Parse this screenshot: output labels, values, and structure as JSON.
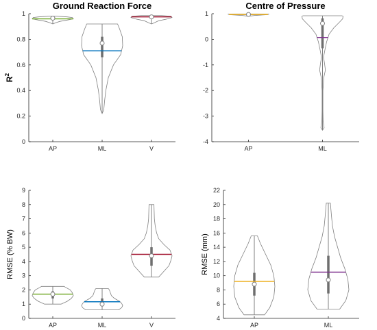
{
  "chart_data": [
    {
      "type": "violin",
      "title": "Ground Reaction Force",
      "ylabel": "R",
      "ylabel_superscript": "2",
      "categories": [
        "AP",
        "ML",
        "V"
      ],
      "ylim": [
        0,
        1
      ],
      "yticks": [
        0,
        0.2,
        0.4,
        0.6,
        0.8,
        1
      ],
      "ytick_labels": [
        "0",
        "0.2",
        "0.4",
        "0.6",
        "0.8",
        "1"
      ],
      "grid": false,
      "series": [
        {
          "category": "AP",
          "color": "#77AC30",
          "min": 0.92,
          "q1": 0.955,
          "median": 0.965,
          "q3": 0.975,
          "max": 0.98,
          "mean": 0.96,
          "profile": [
            [
              0.92,
              0.0
            ],
            [
              0.93,
              0.15
            ],
            [
              0.94,
              0.35
            ],
            [
              0.95,
              0.7
            ],
            [
              0.96,
              1.0
            ],
            [
              0.97,
              0.95
            ],
            [
              0.975,
              0.7
            ],
            [
              0.98,
              0.2
            ]
          ]
        },
        {
          "category": "ML",
          "color": "#0072BD",
          "min": 0.22,
          "q1": 0.66,
          "median": 0.77,
          "q3": 0.82,
          "max": 0.92,
          "mean": 0.71,
          "profile": [
            [
              0.22,
              0.0
            ],
            [
              0.25,
              0.08
            ],
            [
              0.32,
              0.12
            ],
            [
              0.4,
              0.18
            ],
            [
              0.5,
              0.3
            ],
            [
              0.6,
              0.55
            ],
            [
              0.68,
              0.9
            ],
            [
              0.75,
              1.0
            ],
            [
              0.82,
              0.98
            ],
            [
              0.88,
              0.85
            ],
            [
              0.92,
              0.75
            ]
          ]
        },
        {
          "category": "V",
          "color": "#A2142F",
          "min": 0.92,
          "q1": 0.968,
          "median": 0.975,
          "q3": 0.98,
          "max": 0.985,
          "mean": 0.975,
          "profile": [
            [
              0.92,
              0.0
            ],
            [
              0.93,
              0.15
            ],
            [
              0.945,
              0.35
            ],
            [
              0.96,
              0.8
            ],
            [
              0.97,
              1.0
            ],
            [
              0.98,
              0.95
            ],
            [
              0.985,
              0.5
            ]
          ]
        }
      ]
    },
    {
      "type": "violin",
      "title": "Centre of Pressure",
      "ylabel": "",
      "categories": [
        "AP",
        "ML"
      ],
      "ylim": [
        -4,
        1
      ],
      "yticks": [
        -4,
        -3,
        -2,
        -1,
        0,
        1
      ],
      "ytick_labels": [
        "-4",
        "-3",
        "-2",
        "-1",
        "0",
        "1"
      ],
      "grid": false,
      "series": [
        {
          "category": "AP",
          "color": "#EDB120",
          "min": 0.9,
          "q1": 0.95,
          "median": 0.97,
          "q3": 0.985,
          "max": 0.99,
          "mean": 0.97,
          "profile": [
            [
              0.9,
              0.0
            ],
            [
              0.93,
              0.3
            ],
            [
              0.96,
              0.9
            ],
            [
              0.98,
              1.0
            ],
            [
              0.99,
              0.4
            ]
          ]
        },
        {
          "category": "ML",
          "color": "#7E2F8E",
          "min": -3.55,
          "q1": -0.35,
          "median": 0.62,
          "q3": 0.82,
          "max": 0.92,
          "mean": 0.07,
          "profile": [
            [
              -3.55,
              0.0
            ],
            [
              -3.45,
              0.08
            ],
            [
              -3.2,
              0.03
            ],
            [
              -2.8,
              0.02
            ],
            [
              -2.0,
              0.02
            ],
            [
              -1.5,
              0.06
            ],
            [
              -1.2,
              0.14
            ],
            [
              -0.95,
              0.1
            ],
            [
              -0.7,
              0.05
            ],
            [
              -0.4,
              0.12
            ],
            [
              -0.1,
              0.2
            ],
            [
              0.2,
              0.32
            ],
            [
              0.45,
              0.55
            ],
            [
              0.65,
              0.8
            ],
            [
              0.8,
              0.98
            ],
            [
              0.9,
              1.0
            ],
            [
              0.92,
              0.95
            ]
          ]
        }
      ]
    },
    {
      "type": "violin",
      "title": "",
      "ylabel": "RMSE (% BW)",
      "categories": [
        "AP",
        "ML",
        "V"
      ],
      "ylim": [
        0,
        9
      ],
      "yticks": [
        0,
        1,
        2,
        3,
        4,
        5,
        6,
        7,
        8,
        9
      ],
      "ytick_labels": [
        "0",
        "1",
        "2",
        "3",
        "4",
        "5",
        "6",
        "7",
        "8",
        "9"
      ],
      "grid": false,
      "series": [
        {
          "category": "AP",
          "color": "#77AC30",
          "min": 1.0,
          "q1": 1.4,
          "median": 1.7,
          "q3": 1.9,
          "max": 2.25,
          "mean": 1.7,
          "profile": [
            [
              1.0,
              0.4
            ],
            [
              1.2,
              0.7
            ],
            [
              1.4,
              0.9
            ],
            [
              1.6,
              1.0
            ],
            [
              1.8,
              0.95
            ],
            [
              2.0,
              0.85
            ],
            [
              2.2,
              0.6
            ],
            [
              2.25,
              0.55
            ]
          ]
        },
        {
          "category": "ML",
          "color": "#0072BD",
          "min": 0.6,
          "q1": 0.85,
          "median": 1.0,
          "q3": 1.4,
          "max": 2.1,
          "mean": 1.17,
          "profile": [
            [
              0.6,
              0.8
            ],
            [
              0.75,
              0.95
            ],
            [
              0.9,
              1.0
            ],
            [
              1.05,
              0.95
            ],
            [
              1.2,
              0.85
            ],
            [
              1.4,
              0.6
            ],
            [
              1.6,
              0.45
            ],
            [
              1.8,
              0.4
            ],
            [
              2.0,
              0.35
            ],
            [
              2.1,
              0.3
            ]
          ]
        },
        {
          "category": "V",
          "color": "#A2142F",
          "min": 2.9,
          "q1": 3.7,
          "median": 4.4,
          "q3": 5.0,
          "max": 8.0,
          "mean": 4.5,
          "profile": [
            [
              2.9,
              0.35
            ],
            [
              3.3,
              0.6
            ],
            [
              3.7,
              0.85
            ],
            [
              4.1,
              0.95
            ],
            [
              4.4,
              1.0
            ],
            [
              4.8,
              0.9
            ],
            [
              5.2,
              0.6
            ],
            [
              5.6,
              0.35
            ],
            [
              6.0,
              0.25
            ],
            [
              6.5,
              0.18
            ],
            [
              7.0,
              0.14
            ],
            [
              7.5,
              0.13
            ],
            [
              8.0,
              0.12
            ]
          ]
        }
      ]
    },
    {
      "type": "violin",
      "title": "",
      "ylabel": "RMSE (mm)",
      "categories": [
        "AP",
        "ML"
      ],
      "ylim": [
        4,
        22
      ],
      "yticks": [
        4,
        6,
        8,
        10,
        12,
        14,
        16,
        18,
        20,
        22
      ],
      "ytick_labels": [
        "4",
        "6",
        "8",
        "10",
        "12",
        "14",
        "16",
        "18",
        "20",
        "22"
      ],
      "grid": false,
      "series": [
        {
          "category": "AP",
          "color": "#EDB120",
          "min": 4.5,
          "q1": 7.2,
          "median": 8.8,
          "q3": 10.4,
          "max": 15.6,
          "mean": 9.2,
          "profile": [
            [
              4.5,
              0.5
            ],
            [
              5.5,
              0.75
            ],
            [
              7.0,
              0.95
            ],
            [
              8.5,
              1.0
            ],
            [
              10.0,
              0.95
            ],
            [
              11.5,
              0.8
            ],
            [
              13.0,
              0.55
            ],
            [
              14.5,
              0.3
            ],
            [
              15.6,
              0.15
            ]
          ]
        },
        {
          "category": "ML",
          "color": "#7E2F8E",
          "min": 5.3,
          "q1": 7.5,
          "median": 9.4,
          "q3": 12.8,
          "max": 20.2,
          "mean": 10.5,
          "profile": [
            [
              5.3,
              0.55
            ],
            [
              6.5,
              0.85
            ],
            [
              8.0,
              1.0
            ],
            [
              9.5,
              0.95
            ],
            [
              11.0,
              0.8
            ],
            [
              12.5,
              0.6
            ],
            [
              14.0,
              0.45
            ],
            [
              15.5,
              0.3
            ],
            [
              17.0,
              0.2
            ],
            [
              18.5,
              0.15
            ],
            [
              20.2,
              0.1
            ]
          ]
        }
      ]
    }
  ]
}
